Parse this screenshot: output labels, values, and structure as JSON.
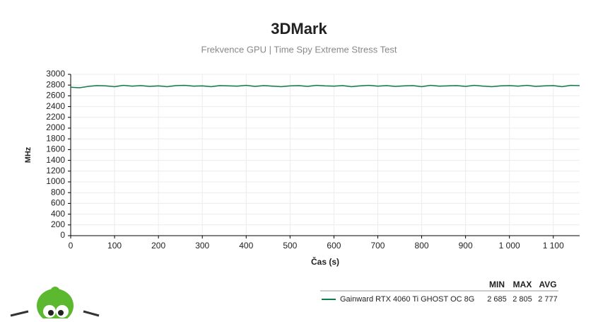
{
  "chart_data": {
    "type": "line",
    "title": "3DMark",
    "subtitle": "Frekvence GPU | Time Spy Extreme Stress Test",
    "y_label": "MHz",
    "x_label": "Čas (s)",
    "x": [
      0,
      20,
      40,
      60,
      80,
      100,
      120,
      140,
      160,
      180,
      200,
      220,
      240,
      260,
      280,
      300,
      320,
      340,
      360,
      380,
      400,
      420,
      440,
      460,
      480,
      500,
      520,
      540,
      560,
      580,
      600,
      620,
      640,
      660,
      680,
      700,
      720,
      740,
      760,
      780,
      800,
      820,
      840,
      860,
      880,
      900,
      920,
      940,
      960,
      980,
      1000,
      1020,
      1040,
      1060,
      1080,
      1100,
      1120,
      1140,
      1160
    ],
    "series": [
      {
        "name": "Gainward RTX 4060 Ti GHOST OC 8G",
        "color": "#127a48",
        "values": [
          2760,
          2750,
          2775,
          2790,
          2785,
          2770,
          2795,
          2780,
          2790,
          2775,
          2785,
          2770,
          2790,
          2795,
          2780,
          2785,
          2770,
          2790,
          2785,
          2780,
          2795,
          2775,
          2790,
          2780,
          2770,
          2785,
          2790,
          2775,
          2795,
          2785,
          2780,
          2790,
          2770,
          2785,
          2795,
          2780,
          2790,
          2775,
          2785,
          2790,
          2770,
          2795,
          2780,
          2785,
          2790,
          2775,
          2795,
          2780,
          2770,
          2785,
          2790,
          2780,
          2795,
          2775,
          2785,
          2790,
          2770,
          2795,
          2790
        ],
        "stats": [
          {
            "value": 2685,
            "label": "2 685"
          },
          {
            "value": 2805,
            "label": "2 805"
          },
          {
            "value": 2777,
            "label": "2 777"
          }
        ]
      }
    ],
    "stats_headers": [
      "MIN",
      "MAX",
      "AVG"
    ],
    "xlim": [
      0,
      1160
    ],
    "xticks": [
      0,
      100,
      200,
      300,
      400,
      500,
      600,
      700,
      800,
      900,
      {
        "value": 1000,
        "label": "1 000"
      },
      {
        "value": 1100,
        "label": "1 100"
      }
    ],
    "ylim": [
      0,
      3000
    ],
    "yticks": [
      0,
      200,
      400,
      600,
      800,
      1000,
      1200,
      1400,
      1600,
      1800,
      2000,
      2200,
      2400,
      2600,
      2800,
      3000
    ],
    "grid": true
  }
}
